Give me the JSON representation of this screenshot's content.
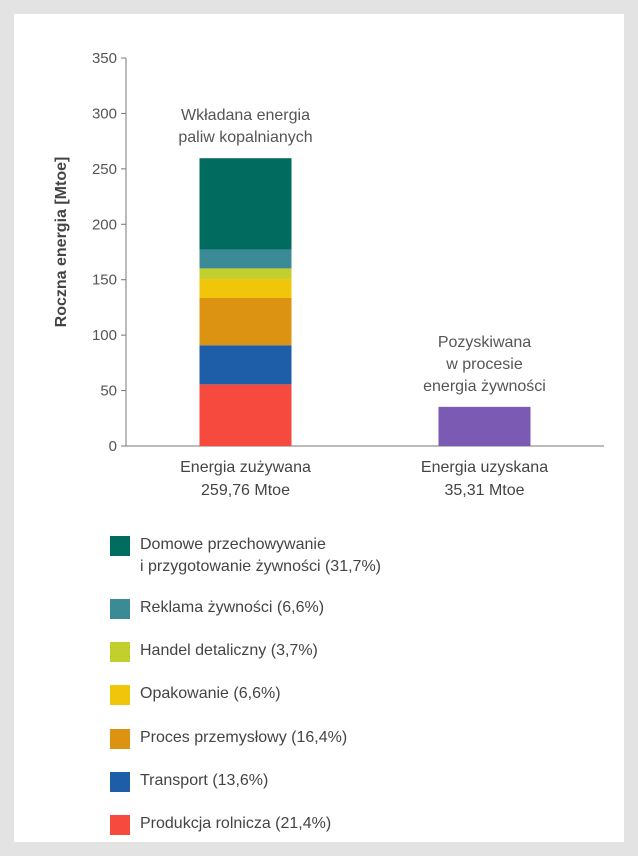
{
  "chart_data": {
    "type": "bar",
    "stacked": true,
    "ylabel": "Roczna energia [Mtoe]",
    "ylim": [
      0,
      350
    ],
    "yticks": [
      "0",
      "50",
      "100",
      "150",
      "200",
      "250",
      "300",
      "350"
    ],
    "grid": false,
    "categories": [
      {
        "line1": "Energia zużywana",
        "line2": "259,76 Mtoe"
      },
      {
        "line1": "Energia uzyskana",
        "line2": "35,31 Mtoe"
      }
    ],
    "annotations": [
      {
        "lines": [
          "Wkładana energia",
          "paliw kopalnianych"
        ]
      },
      {
        "lines": [
          "Pozyskiwana",
          "w procesie",
          "energia żywności"
        ]
      }
    ],
    "series": [
      {
        "name": "Produkcja rolnicza (21,4%)",
        "color": "#f64a3f",
        "values": [
          55.6,
          0
        ]
      },
      {
        "name": "Transport (13,6%)",
        "color": "#1e5ea8",
        "values": [
          35.3,
          0
        ]
      },
      {
        "name": "Proces przemysłowy (16,4%)",
        "color": "#dc9312",
        "values": [
          42.6,
          0
        ]
      },
      {
        "name": "Opakowanie (6,6%)",
        "color": "#f0c50a",
        "values": [
          17.1,
          0
        ]
      },
      {
        "name": "Handel detaliczny (3,7%)",
        "color": "#c3cf2d",
        "values": [
          9.6,
          0
        ]
      },
      {
        "name": "Reklama żywności (6,6%)",
        "color": "#3b8b97",
        "values": [
          17.1,
          0
        ]
      },
      {
        "name": "Domowe przechowywanie\ni przygotowanie żywności (31,7%)",
        "color": "#006b5e",
        "values": [
          82.3,
          0
        ]
      },
      {
        "name": "",
        "color": "#7b5ab3",
        "values": [
          0,
          35.31
        ]
      }
    ]
  }
}
